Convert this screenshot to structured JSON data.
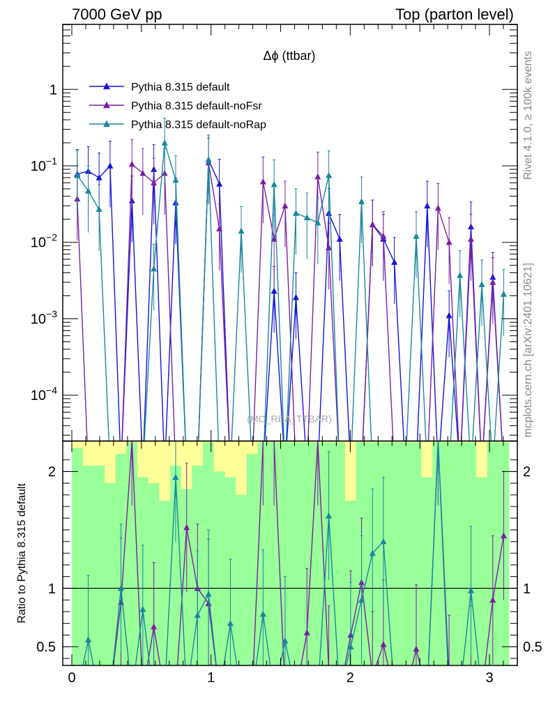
{
  "header": {
    "left": "7000 GeV pp",
    "right": "Top (parton level)"
  },
  "side_labels": {
    "rivet": "Rivet 4.1.0, ≥ 100k events",
    "mcplots": "mcplots.cern.ch [arXiv:2401.10621]"
  },
  "chart_data": [
    {
      "type": "line",
      "panel": "main",
      "title": "Δϕ (ttbar)",
      "watermark": "(MC_REA_TTBAR)",
      "xlim": [
        -0.05,
        3.19
      ],
      "ylim_log10": [
        -4.6,
        0.85
      ],
      "yscale": "log",
      "y_tick_labels": [
        {
          "value": 1,
          "label": "1"
        },
        {
          "value": 0.1,
          "base": "10",
          "exp": "−1"
        },
        {
          "value": 0.01,
          "base": "10",
          "exp": "−2"
        },
        {
          "value": 0.001,
          "base": "10",
          "exp": "−3"
        },
        {
          "value": 0.0001,
          "base": "10",
          "exp": "−4"
        }
      ],
      "floor_value": 1e-05,
      "x": [
        0.039,
        0.118,
        0.196,
        0.275,
        0.353,
        0.432,
        0.51,
        0.589,
        0.667,
        0.746,
        0.825,
        0.903,
        0.982,
        1.06,
        1.139,
        1.217,
        1.296,
        1.374,
        1.453,
        1.532,
        1.61,
        1.689,
        1.767,
        1.846,
        1.924,
        2.003,
        2.081,
        2.16,
        2.238,
        2.317,
        2.396,
        2.474,
        2.553,
        2.631,
        2.71,
        2.788,
        2.867,
        2.945,
        3.024,
        3.102
      ],
      "series": [
        {
          "name": "Pythia 8.315 default",
          "color": "#1515d6",
          "values": [
            0.078,
            0.085,
            0.07,
            0.1,
            0,
            0.035,
            0,
            0.09,
            0,
            0.033,
            0,
            0,
            0.12,
            0.058,
            0,
            0,
            0,
            0,
            0.0023,
            0,
            0.0019,
            0,
            0,
            0.024,
            0.011,
            0,
            0,
            0.017,
            0.011,
            0.0055,
            0,
            0,
            0.03,
            0,
            0.0011,
            0,
            0.016,
            0,
            0.0035,
            0
          ]
        },
        {
          "name": "Pythia 8.315 default-noFsr",
          "color": "#7b1fa2",
          "values": [
            0.037,
            0,
            0,
            0,
            0,
            0.105,
            0.08,
            0.06,
            0.08,
            0,
            0,
            0,
            0.11,
            0.015,
            0,
            0,
            0,
            0.062,
            0.011,
            0.03,
            0,
            0,
            0.072,
            0.0085,
            0,
            0,
            0,
            0.017,
            0.012,
            0,
            0,
            0,
            0,
            0.028,
            0.01,
            0,
            0.011,
            0,
            0.003,
            0
          ]
        },
        {
          "name": "Pythia 8.315 default-noRap",
          "color": "#18879f",
          "values": [
            0.075,
            0.047,
            0.027,
            0,
            0,
            0,
            0,
            0.0045,
            0.2,
            0.065,
            0,
            0,
            0.12,
            0,
            0,
            0.014,
            0,
            0,
            0.057,
            0,
            0.024,
            0.021,
            0.018,
            0.075,
            0,
            0,
            0.034,
            0,
            0,
            0,
            0,
            0.012,
            0,
            0,
            0,
            0.0037,
            0,
            0.0028,
            0,
            0.0021
          ]
        }
      ]
    },
    {
      "type": "line",
      "panel": "ratio",
      "ylabel": "Ratio to Pythia 8.315 default",
      "xlim": [
        -0.05,
        3.19
      ],
      "ylim": [
        0.34,
        2.26
      ],
      "y_ticks": [
        0.5,
        1,
        2
      ],
      "y_tick_labels": [
        "0.5",
        "1",
        "2"
      ],
      "x_ticks": [
        0,
        1,
        2,
        3
      ],
      "x_tick_labels": [
        "0",
        "1",
        "2",
        "3"
      ],
      "reference_line": 1,
      "band_colors": {
        "outer": "#ffff99",
        "inner": "#99ff99"
      },
      "band_inner_upper": [
        2.2,
        2.05,
        2.05,
        1.9,
        2.15,
        2.25,
        1.95,
        1.9,
        1.75,
        2.05,
        1.85,
        2.05,
        2.25,
        2.0,
        1.95,
        1.8,
        2.15,
        2.25,
        2.25,
        2.25,
        2.25,
        2.25,
        2.25,
        2.25,
        2.25,
        1.75,
        2.25,
        2.25,
        2.25,
        2.25,
        2.25,
        2.25,
        1.95,
        2.25,
        2.25,
        2.25,
        2.25,
        1.95,
        2.25,
        2.25
      ],
      "band_outer_upper": [
        2.26,
        2.26,
        2.26,
        2.26,
        2.26,
        2.26,
        2.26,
        2.26,
        2.26,
        2.26,
        2.26,
        2.26,
        2.26,
        2.26,
        2.26,
        2.26,
        2.26,
        2.26,
        2.26,
        2.26,
        2.26,
        2.26,
        2.26,
        2.26,
        2.26,
        2.26,
        2.26,
        2.26,
        2.26,
        2.26,
        2.26,
        2.26,
        2.26,
        2.26,
        2.26,
        2.26,
        2.26,
        2.26,
        2.26,
        2.26
      ],
      "series": [
        {
          "name": "Pythia 8.315 default-noFsr",
          "color": "#7b1fa2",
          "values": [
            null,
            null,
            null,
            null,
            0.88,
            2.26,
            null,
            0.67,
            null,
            null,
            1.52,
            1.0,
            0.87,
            null,
            null,
            null,
            null,
            2.26,
            2.26,
            null,
            null,
            0.62,
            2.26,
            0.3,
            null,
            0.6,
            1.05,
            0.25,
            0.52,
            null,
            null,
            0.48,
            null,
            2.26,
            0.22,
            null,
            0.3,
            null,
            0.9,
            1.45
          ]
        },
        {
          "name": "Pythia 8.315 default-noRap",
          "color": "#18879f",
          "values": [
            null,
            0.56,
            null,
            null,
            1.0,
            null,
            0.82,
            0.05,
            null,
            1.95,
            null,
            0.77,
            0.95,
            null,
            0.7,
            null,
            null,
            0.78,
            null,
            0.55,
            null,
            null,
            null,
            1.62,
            null,
            0.5,
            0.9,
            1.3,
            1.4,
            null,
            null,
            null,
            null,
            2.26,
            null,
            null,
            0.98,
            null,
            null,
            null
          ]
        }
      ]
    }
  ]
}
